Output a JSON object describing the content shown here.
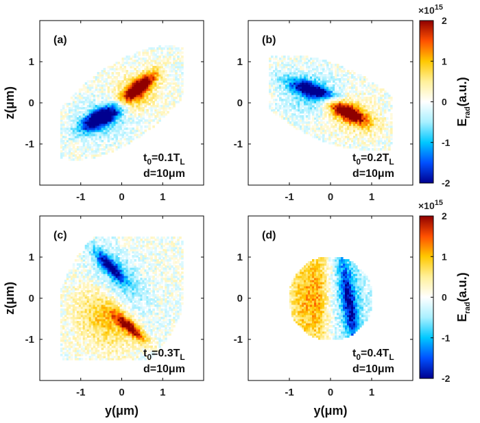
{
  "colors": {
    "axis": "#000000",
    "colormap": [
      "#00008f",
      "#0050ff",
      "#00c8ff",
      "#a8f0ff",
      "#ffffff",
      "#fff09a",
      "#ffc800",
      "#ff5000",
      "#8f0000"
    ]
  },
  "colorbar": {
    "multiplier": "×10",
    "exponent": "15",
    "label_main": "E",
    "label_sub": "rad",
    "label_unit": "(a.u.)",
    "ticks": [
      "2",
      "1",
      "0",
      "-1",
      "-2"
    ]
  },
  "axes_common": {
    "xlabel": "y(μm)",
    "ylabel": "z(μm)",
    "xticks": [
      "-1",
      "0",
      "1"
    ],
    "yticks": [
      "1",
      "0",
      "-1"
    ]
  },
  "chart_data": [
    {
      "type": "heatmap",
      "panel": "(a)",
      "t0": "0.1",
      "annotation_line1": "t0=0.1TL",
      "annotation_line2": "d=10μm",
      "xlim": [
        -2,
        2
      ],
      "ylim": [
        -2,
        2
      ],
      "clim": [
        -2000000000000000.0,
        2000000000000000.0
      ],
      "pattern": "S-shaped double lobe: positive upper-right, negative lower-left",
      "peak_positive": {
        "y": 0.45,
        "z": 0.4
      },
      "peak_negative": {
        "y": -0.5,
        "z": -0.35
      }
    },
    {
      "type": "heatmap",
      "panel": "(b)",
      "t0": "0.2",
      "annotation_line1": "t0=0.2TL",
      "annotation_line2": "d=10μm",
      "xlim": [
        -2,
        2
      ],
      "ylim": [
        -2,
        2
      ],
      "clim": [
        -2000000000000000.0,
        2000000000000000.0
      ],
      "pattern": "Tilted double lobe: negative upper-left, positive lower-right",
      "peak_positive": {
        "y": 0.4,
        "z": -0.2
      },
      "peak_negative": {
        "y": -0.4,
        "z": 0.3
      }
    },
    {
      "type": "heatmap",
      "panel": "(c)",
      "t0": "0.3",
      "annotation_line1": "t0=0.3TL",
      "annotation_line2": "d=10μm",
      "xlim": [
        -2,
        2
      ],
      "ylim": [
        -2,
        2
      ],
      "clim": [
        -2000000000000000.0,
        2000000000000000.0
      ],
      "pattern": "Diagonal split: negative upper band, positive lower band",
      "peak_positive": {
        "y": 0.2,
        "z": -0.7
      },
      "peak_negative": {
        "y": -0.3,
        "z": 0.8
      }
    },
    {
      "type": "heatmap",
      "panel": "(d)",
      "t0": "0.4",
      "annotation_line1": "t0=0.4TL",
      "annotation_line2": "d=10μm",
      "xlim": [
        -2,
        2
      ],
      "ylim": [
        -2,
        2
      ],
      "clim": [
        -2000000000000000.0,
        2000000000000000.0
      ],
      "pattern": "Vertical split disk: positive left half, negative right half",
      "peak_positive": {
        "y": -0.6,
        "z": 0.0
      },
      "peak_negative": {
        "y": 0.5,
        "z": -0.3
      }
    }
  ]
}
